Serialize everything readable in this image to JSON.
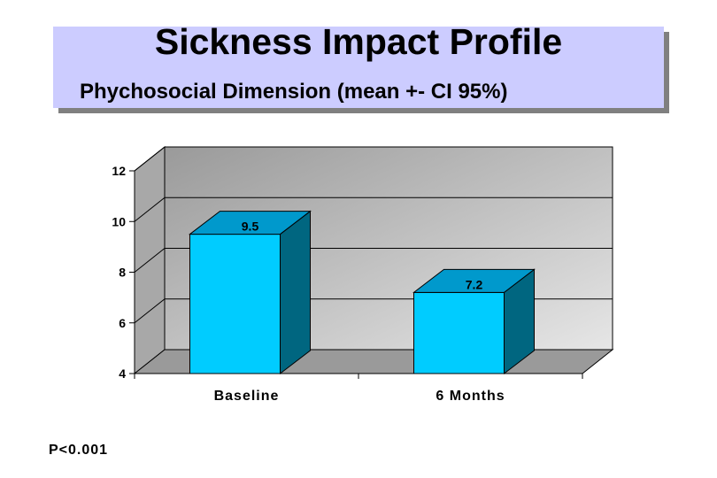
{
  "header": {
    "title": "Sickness Impact Profile",
    "subtitle": "Phychosocial Dimension (mean +- CI 95%)"
  },
  "footnote": "P<0.001",
  "chart_data": {
    "type": "bar",
    "categories": [
      "Baseline",
      "6 Months"
    ],
    "values": [
      9.5,
      7.2
    ],
    "data_labels": [
      "9.5",
      "7.2"
    ],
    "ylim": [
      4,
      12
    ],
    "yticks": [
      4,
      6,
      8,
      10,
      12
    ],
    "grid": true,
    "three_d": true,
    "colors": {
      "bar_front": "#00ccff",
      "bar_top": "#0099cc",
      "bar_side": "#006680",
      "back_wall": "#bcbcbc",
      "side_wall": "#a8a8a8",
      "floor": "#9a9a9a"
    }
  }
}
